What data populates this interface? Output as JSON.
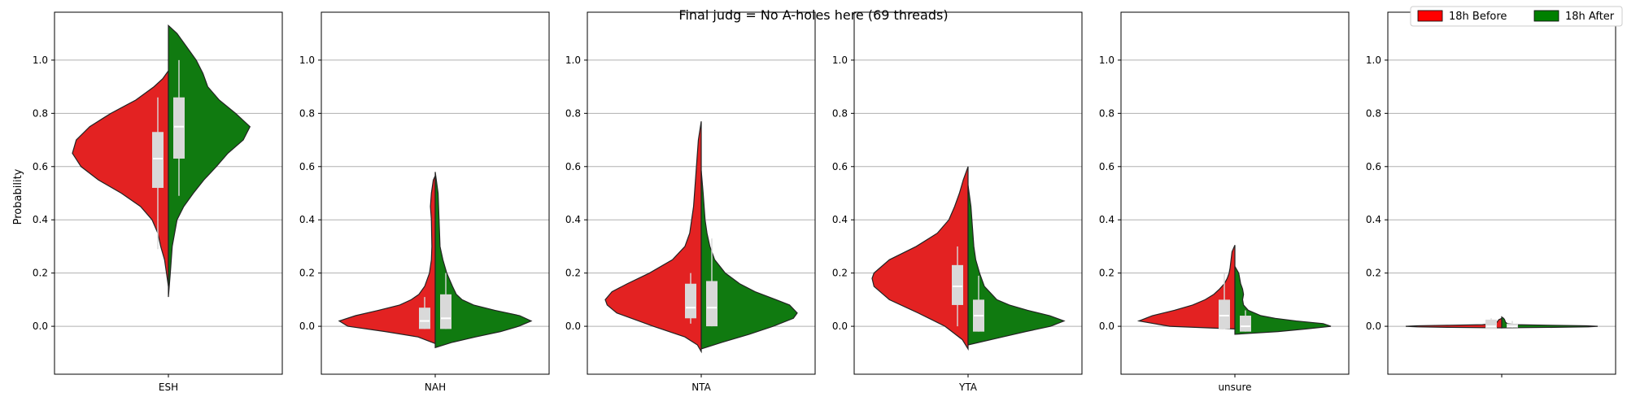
{
  "figure": {
    "title": "Final judg = No A-holes here (69 threads)",
    "ylabel": "Probability"
  },
  "legend": {
    "location": "top-right",
    "entries": [
      {
        "label": "18h Before",
        "color": "#ff0000"
      },
      {
        "label": "18h After",
        "color": "#008000"
      }
    ]
  },
  "chart_data": {
    "type": "violin",
    "title": "Final judg = No A-holes here (69 threads)",
    "ylabel": "Probability",
    "ylim": [
      -0.18,
      1.18
    ],
    "yticks": [
      "0.0",
      "0.2",
      "0.4",
      "0.6",
      "0.8",
      "1.0"
    ],
    "grid": "horizontal",
    "split": true,
    "colors": {
      "before": "#e32222",
      "after": "#107a10",
      "box": "#d9d9d9"
    },
    "series_names": [
      "18h Before",
      "18h After"
    ],
    "panels": [
      {
        "category": "ESH",
        "before": {
          "range": [
            0.15,
            0.96
          ],
          "box": {
            "q1": 0.52,
            "median": 0.63,
            "q3": 0.73,
            "whisker_low": 0.29,
            "whisker_high": 0.86
          },
          "density": [
            [
              0.15,
              0.0
            ],
            [
              0.2,
              0.02
            ],
            [
              0.25,
              0.04
            ],
            [
              0.3,
              0.08
            ],
            [
              0.35,
              0.11
            ],
            [
              0.4,
              0.17
            ],
            [
              0.45,
              0.29
            ],
            [
              0.5,
              0.49
            ],
            [
              0.55,
              0.73
            ],
            [
              0.6,
              0.91
            ],
            [
              0.65,
              1.0
            ],
            [
              0.7,
              0.96
            ],
            [
              0.75,
              0.82
            ],
            [
              0.8,
              0.6
            ],
            [
              0.85,
              0.34
            ],
            [
              0.9,
              0.15
            ],
            [
              0.93,
              0.06
            ],
            [
              0.96,
              0.0
            ]
          ]
        },
        "after": {
          "range": [
            0.11,
            1.13
          ],
          "box": {
            "q1": 0.63,
            "median": 0.75,
            "q3": 0.86,
            "whisker_low": 0.49,
            "whisker_high": 1.0
          },
          "density": [
            [
              0.11,
              0.0
            ],
            [
              0.2,
              0.02
            ],
            [
              0.3,
              0.04
            ],
            [
              0.4,
              0.09
            ],
            [
              0.45,
              0.16
            ],
            [
              0.5,
              0.26
            ],
            [
              0.55,
              0.37
            ],
            [
              0.6,
              0.5
            ],
            [
              0.65,
              0.62
            ],
            [
              0.7,
              0.78
            ],
            [
              0.75,
              0.85
            ],
            [
              0.8,
              0.7
            ],
            [
              0.85,
              0.53
            ],
            [
              0.9,
              0.41
            ],
            [
              0.95,
              0.36
            ],
            [
              1.0,
              0.29
            ],
            [
              1.05,
              0.19
            ],
            [
              1.1,
              0.09
            ],
            [
              1.13,
              0.0
            ]
          ]
        }
      },
      {
        "category": "NAH",
        "before": {
          "range": [
            -0.065,
            0.565
          ],
          "box": {
            "q1": -0.01,
            "median": 0.02,
            "q3": 0.07,
            "whisker_low": -0.01,
            "whisker_high": 0.11
          },
          "density": [
            [
              -0.065,
              0.0
            ],
            [
              -0.04,
              0.18
            ],
            [
              -0.02,
              0.52
            ],
            [
              0.0,
              0.91
            ],
            [
              0.02,
              1.0
            ],
            [
              0.04,
              0.83
            ],
            [
              0.06,
              0.59
            ],
            [
              0.08,
              0.37
            ],
            [
              0.1,
              0.25
            ],
            [
              0.12,
              0.17
            ],
            [
              0.15,
              0.11
            ],
            [
              0.2,
              0.06
            ],
            [
              0.25,
              0.04
            ],
            [
              0.3,
              0.035
            ],
            [
              0.4,
              0.04
            ],
            [
              0.45,
              0.05
            ],
            [
              0.5,
              0.04
            ],
            [
              0.55,
              0.02
            ],
            [
              0.565,
              0.0
            ]
          ]
        },
        "after": {
          "range": [
            -0.08,
            0.58
          ],
          "box": {
            "q1": -0.01,
            "median": 0.03,
            "q3": 0.12,
            "whisker_low": -0.01,
            "whisker_high": 0.2
          },
          "density": [
            [
              -0.08,
              0.0
            ],
            [
              -0.06,
              0.18
            ],
            [
              -0.04,
              0.42
            ],
            [
              -0.02,
              0.68
            ],
            [
              0.0,
              0.87
            ],
            [
              0.02,
              1.0
            ],
            [
              0.04,
              0.88
            ],
            [
              0.06,
              0.62
            ],
            [
              0.08,
              0.4
            ],
            [
              0.1,
              0.28
            ],
            [
              0.12,
              0.22
            ],
            [
              0.15,
              0.18
            ],
            [
              0.2,
              0.12
            ],
            [
              0.25,
              0.08
            ],
            [
              0.3,
              0.05
            ],
            [
              0.4,
              0.04
            ],
            [
              0.5,
              0.03
            ],
            [
              0.58,
              0.0
            ]
          ]
        }
      },
      {
        "category": "NTA",
        "before": {
          "range": [
            -0.095,
            0.77
          ],
          "box": {
            "q1": 0.03,
            "median": 0.07,
            "q3": 0.16,
            "whisker_low": 0.01,
            "whisker_high": 0.2
          },
          "density": [
            [
              -0.095,
              0.0
            ],
            [
              -0.07,
              0.04
            ],
            [
              -0.04,
              0.17
            ],
            [
              0.0,
              0.5
            ],
            [
              0.05,
              0.88
            ],
            [
              0.08,
              0.98
            ],
            [
              0.1,
              1.0
            ],
            [
              0.13,
              0.93
            ],
            [
              0.16,
              0.77
            ],
            [
              0.2,
              0.54
            ],
            [
              0.25,
              0.3
            ],
            [
              0.3,
              0.17
            ],
            [
              0.35,
              0.12
            ],
            [
              0.4,
              0.1
            ],
            [
              0.45,
              0.08
            ],
            [
              0.5,
              0.07
            ],
            [
              0.6,
              0.05
            ],
            [
              0.7,
              0.03
            ],
            [
              0.77,
              0.0
            ]
          ]
        },
        "after": {
          "range": [
            -0.085,
            0.585
          ],
          "box": {
            "q1": 0.0,
            "median": 0.07,
            "q3": 0.17,
            "whisker_low": 0.0,
            "whisker_high": 0.33
          },
          "density": [
            [
              -0.085,
              0.0
            ],
            [
              -0.06,
              0.22
            ],
            [
              -0.03,
              0.5
            ],
            [
              0.0,
              0.75
            ],
            [
              0.03,
              0.96
            ],
            [
              0.05,
              1.0
            ],
            [
              0.08,
              0.92
            ],
            [
              0.1,
              0.78
            ],
            [
              0.13,
              0.56
            ],
            [
              0.16,
              0.4
            ],
            [
              0.2,
              0.25
            ],
            [
              0.25,
              0.14
            ],
            [
              0.3,
              0.09
            ],
            [
              0.35,
              0.06
            ],
            [
              0.4,
              0.04
            ],
            [
              0.5,
              0.02
            ],
            [
              0.585,
              0.0
            ]
          ]
        }
      },
      {
        "category": "YTA",
        "before": {
          "range": [
            -0.085,
            0.6
          ],
          "box": {
            "q1": 0.08,
            "median": 0.15,
            "q3": 0.23,
            "whisker_low": 0.0,
            "whisker_high": 0.3
          },
          "density": [
            [
              -0.085,
              0.0
            ],
            [
              -0.05,
              0.06
            ],
            [
              0.0,
              0.24
            ],
            [
              0.05,
              0.52
            ],
            [
              0.1,
              0.82
            ],
            [
              0.15,
              0.98
            ],
            [
              0.18,
              1.0
            ],
            [
              0.2,
              0.98
            ],
            [
              0.25,
              0.82
            ],
            [
              0.3,
              0.54
            ],
            [
              0.35,
              0.32
            ],
            [
              0.4,
              0.2
            ],
            [
              0.45,
              0.14
            ],
            [
              0.5,
              0.09
            ],
            [
              0.55,
              0.05
            ],
            [
              0.6,
              0.0
            ]
          ]
        },
        "after": {
          "range": [
            -0.07,
            0.53
          ],
          "box": {
            "q1": -0.02,
            "median": 0.04,
            "q3": 0.1,
            "whisker_low": -0.02,
            "whisker_high": 0.19
          },
          "density": [
            [
              -0.07,
              0.0
            ],
            [
              -0.04,
              0.36
            ],
            [
              -0.02,
              0.6
            ],
            [
              0.0,
              0.86
            ],
            [
              0.02,
              1.0
            ],
            [
              0.04,
              0.85
            ],
            [
              0.06,
              0.62
            ],
            [
              0.08,
              0.43
            ],
            [
              0.1,
              0.3
            ],
            [
              0.15,
              0.17
            ],
            [
              0.2,
              0.12
            ],
            [
              0.25,
              0.08
            ],
            [
              0.3,
              0.06
            ],
            [
              0.35,
              0.05
            ],
            [
              0.4,
              0.04
            ],
            [
              0.45,
              0.03
            ],
            [
              0.53,
              0.0
            ]
          ]
        }
      },
      {
        "category": "unsure",
        "before": {
          "range": [
            -0.01,
            0.305
          ],
          "box": {
            "q1": -0.01,
            "median": 0.04,
            "q3": 0.1,
            "whisker_low": -0.01,
            "whisker_high": 0.2
          },
          "density": [
            [
              -0.01,
              0.0
            ],
            [
              0.0,
              0.68
            ],
            [
              0.02,
              1.0
            ],
            [
              0.04,
              0.86
            ],
            [
              0.06,
              0.63
            ],
            [
              0.08,
              0.44
            ],
            [
              0.1,
              0.31
            ],
            [
              0.12,
              0.22
            ],
            [
              0.14,
              0.16
            ],
            [
              0.16,
              0.11
            ],
            [
              0.18,
              0.08
            ],
            [
              0.2,
              0.06
            ],
            [
              0.22,
              0.05
            ],
            [
              0.25,
              0.04
            ],
            [
              0.28,
              0.03
            ],
            [
              0.305,
              0.0
            ]
          ]
        },
        "after": {
          "range": [
            -0.03,
            0.225
          ],
          "box": {
            "q1": -0.02,
            "median": 0.0,
            "q3": 0.04,
            "whisker_low": -0.02,
            "whisker_high": 0.06
          },
          "density": [
            [
              -0.03,
              0.0
            ],
            [
              -0.02,
              0.45
            ],
            [
              -0.01,
              0.74
            ],
            [
              0.0,
              1.0
            ],
            [
              0.01,
              0.92
            ],
            [
              0.02,
              0.64
            ],
            [
              0.03,
              0.42
            ],
            [
              0.04,
              0.27
            ],
            [
              0.06,
              0.14
            ],
            [
              0.08,
              0.09
            ],
            [
              0.1,
              0.08
            ],
            [
              0.12,
              0.09
            ],
            [
              0.14,
              0.08
            ],
            [
              0.16,
              0.06
            ],
            [
              0.18,
              0.05
            ],
            [
              0.2,
              0.04
            ],
            [
              0.225,
              0.0
            ]
          ]
        }
      },
      {
        "category": "",
        "before": {
          "range": [
            -0.006,
            0.03
          ],
          "box": {
            "q1": -0.01,
            "median": 0.0,
            "q3": 0.025,
            "whisker_low": -0.01,
            "whisker_high": 0.03
          },
          "density": [
            [
              -0.006,
              0.0
            ],
            [
              -0.004,
              0.55
            ],
            [
              -0.002,
              0.88
            ],
            [
              0.0,
              1.0
            ],
            [
              0.002,
              0.88
            ],
            [
              0.004,
              0.55
            ],
            [
              0.006,
              0.2
            ],
            [
              0.01,
              0.08
            ],
            [
              0.015,
              0.05
            ],
            [
              0.02,
              0.04
            ],
            [
              0.025,
              0.03
            ],
            [
              0.03,
              0.0
            ]
          ]
        },
        "after": {
          "range": [
            -0.006,
            0.035
          ],
          "box": {
            "q1": -0.005,
            "median": 0.0,
            "q3": 0.01,
            "whisker_low": -0.005,
            "whisker_high": 0.02
          },
          "density": [
            [
              -0.006,
              0.0
            ],
            [
              -0.004,
              0.55
            ],
            [
              -0.002,
              0.9
            ],
            [
              0.0,
              1.0
            ],
            [
              0.002,
              0.88
            ],
            [
              0.004,
              0.5
            ],
            [
              0.006,
              0.15
            ],
            [
              0.01,
              0.06
            ],
            [
              0.015,
              0.04
            ],
            [
              0.02,
              0.035
            ],
            [
              0.025,
              0.03
            ],
            [
              0.03,
              0.02
            ],
            [
              0.035,
              0.0
            ]
          ]
        }
      }
    ]
  }
}
